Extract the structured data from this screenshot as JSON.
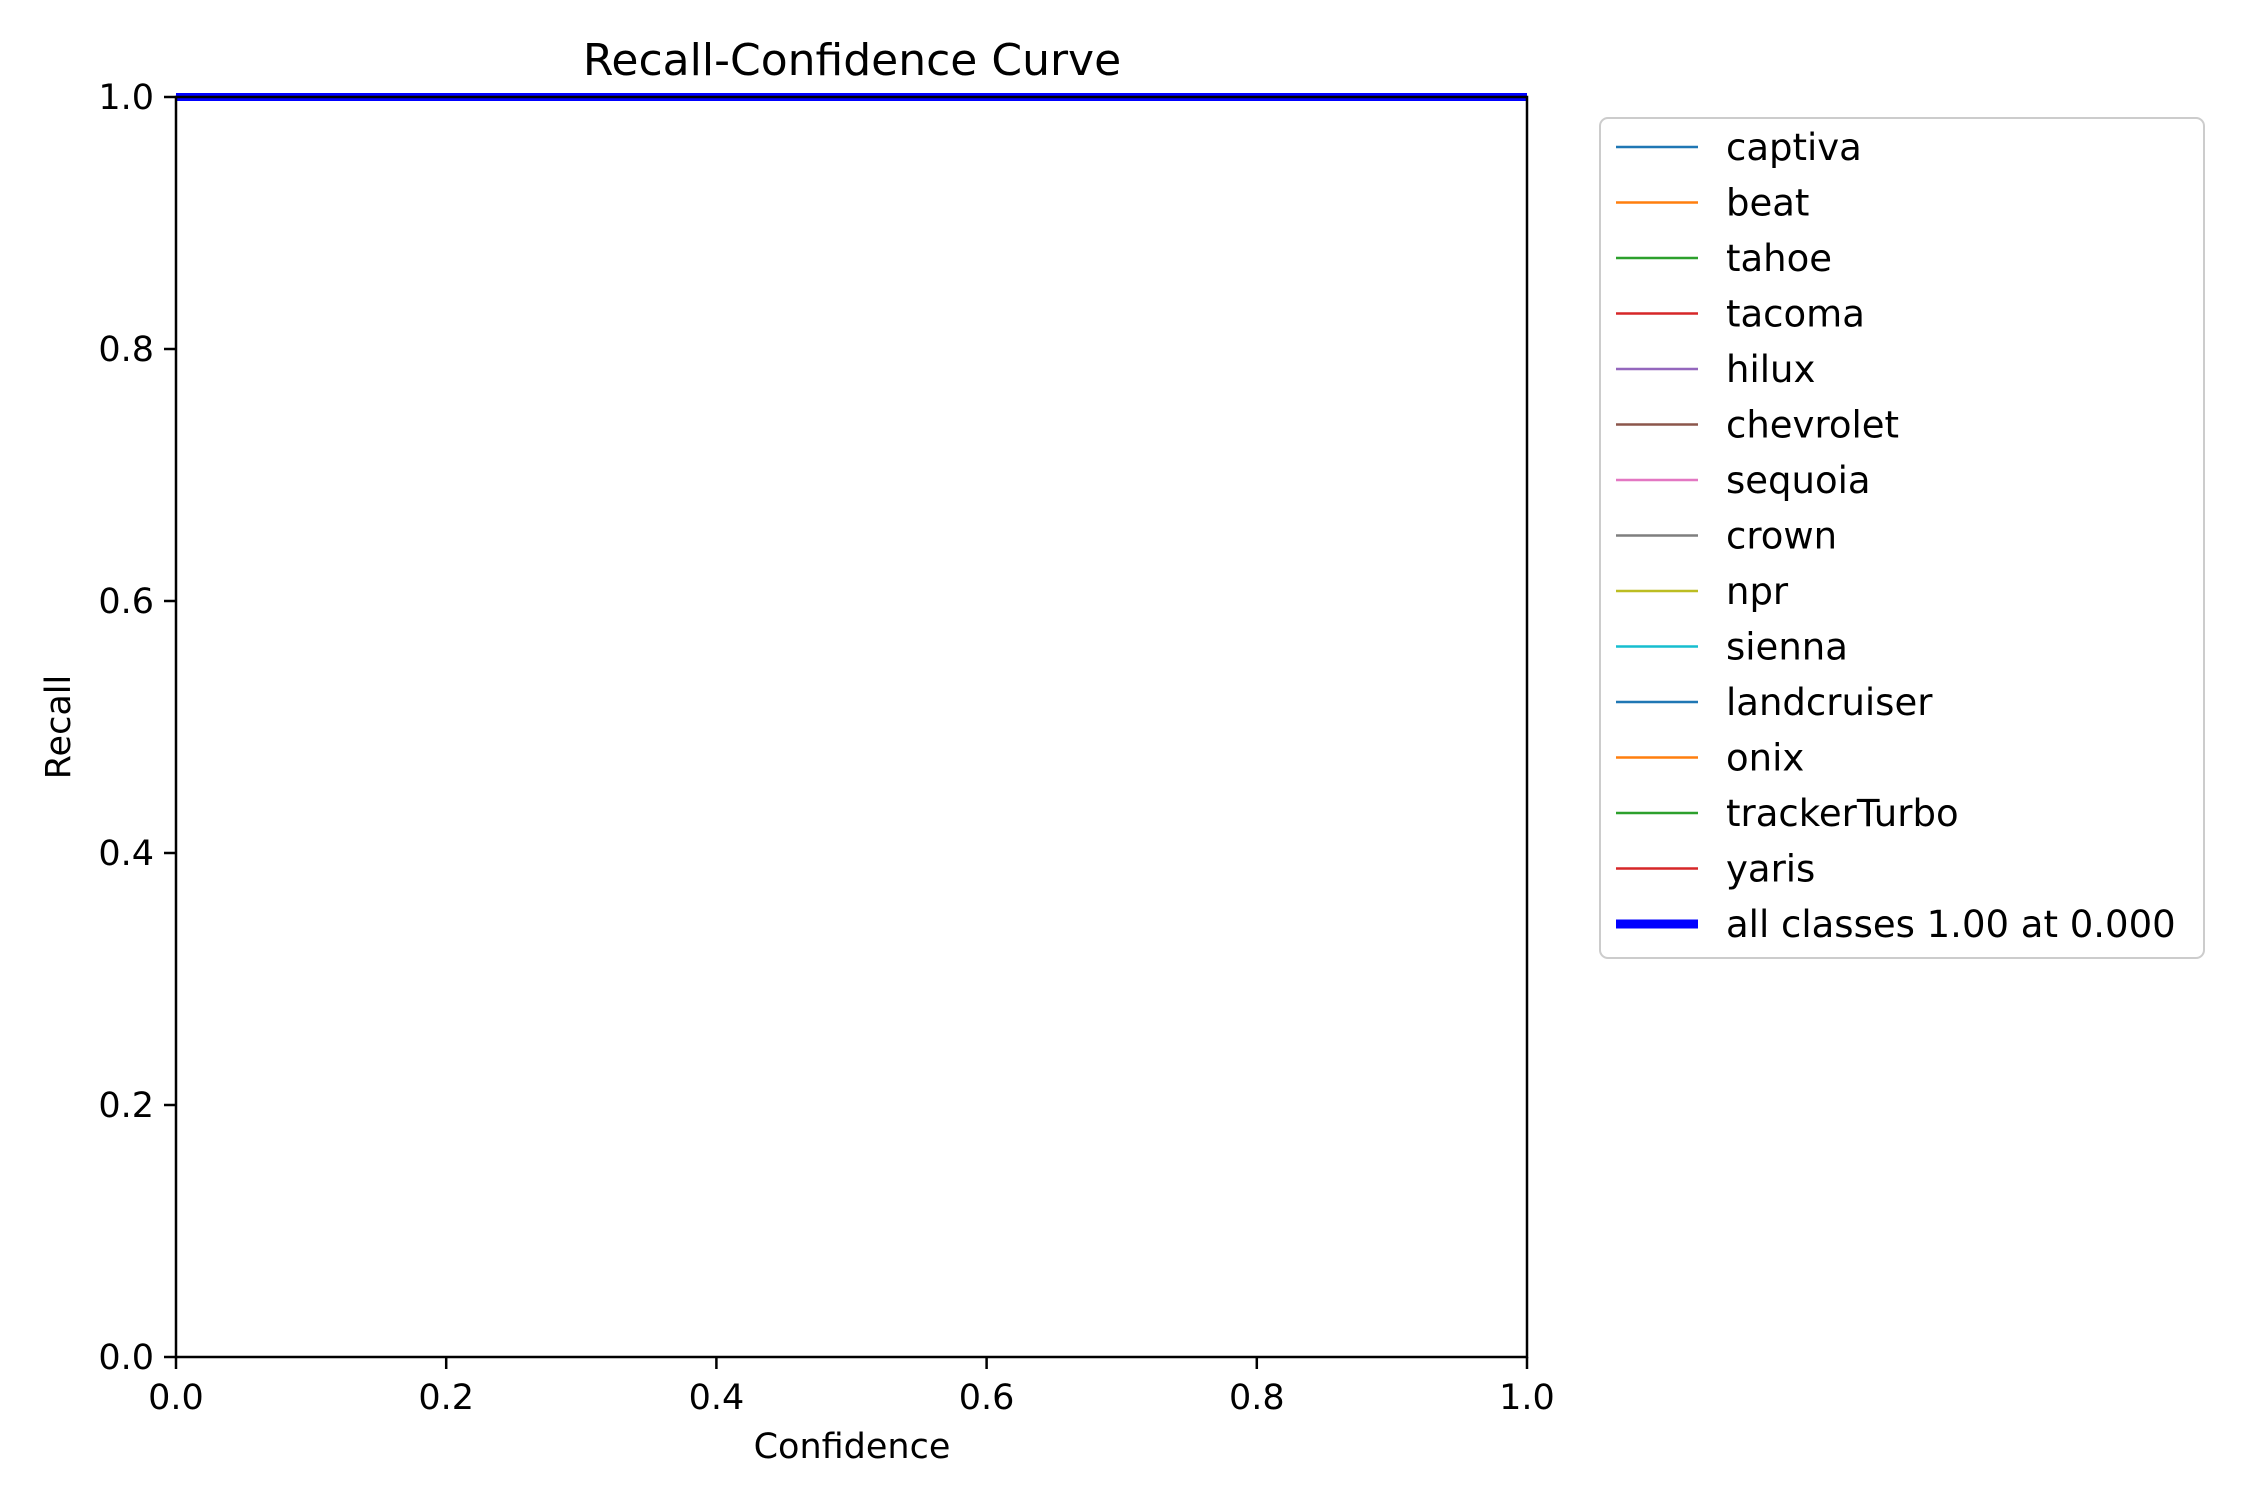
{
  "chart_data": {
    "type": "line",
    "title": "Recall-Confidence Curve",
    "xlabel": "Confidence",
    "ylabel": "Recall",
    "xlim": [
      0,
      1
    ],
    "ylim": [
      0,
      1
    ],
    "xticks": [
      "0.0",
      "0.2",
      "0.4",
      "0.6",
      "0.8",
      "1.0"
    ],
    "yticks": [
      "0.0",
      "0.2",
      "0.4",
      "0.6",
      "0.8",
      "1.0"
    ],
    "grid": false,
    "legend_position": "outside-right-top",
    "series": [
      {
        "name": "captiva",
        "color": "#1f77b4",
        "x": [
          0,
          1
        ],
        "y": [
          1,
          1
        ]
      },
      {
        "name": "beat",
        "color": "#ff7f0e",
        "x": [
          0,
          1
        ],
        "y": [
          1,
          1
        ]
      },
      {
        "name": "tahoe",
        "color": "#2ca02c",
        "x": [
          0,
          1
        ],
        "y": [
          1,
          1
        ]
      },
      {
        "name": "tacoma",
        "color": "#d62728",
        "x": [
          0,
          1
        ],
        "y": [
          1,
          1
        ]
      },
      {
        "name": "hilux",
        "color": "#9467bd",
        "x": [
          0,
          1
        ],
        "y": [
          1,
          1
        ]
      },
      {
        "name": "chevrolet",
        "color": "#8c564b",
        "x": [
          0,
          1
        ],
        "y": [
          1,
          1
        ]
      },
      {
        "name": "sequoia",
        "color": "#e377c2",
        "x": [
          0,
          1
        ],
        "y": [
          1,
          1
        ]
      },
      {
        "name": "crown",
        "color": "#7f7f7f",
        "x": [
          0,
          1
        ],
        "y": [
          1,
          1
        ]
      },
      {
        "name": "npr",
        "color": "#bcbd22",
        "x": [
          0,
          1
        ],
        "y": [
          1,
          1
        ]
      },
      {
        "name": "sienna",
        "color": "#17becf",
        "x": [
          0,
          1
        ],
        "y": [
          1,
          1
        ]
      },
      {
        "name": "landcruiser",
        "color": "#1f77b4",
        "x": [
          0,
          1
        ],
        "y": [
          1,
          1
        ]
      },
      {
        "name": "onix",
        "color": "#ff7f0e",
        "x": [
          0,
          1
        ],
        "y": [
          1,
          1
        ]
      },
      {
        "name": "trackerTurbo",
        "color": "#2ca02c",
        "x": [
          0,
          1
        ],
        "y": [
          1,
          1
        ]
      },
      {
        "name": "yaris",
        "color": "#d62728",
        "x": [
          0,
          1
        ],
        "y": [
          1,
          1
        ]
      },
      {
        "name": "all classes 1.00 at 0.000",
        "color": "#0000ff",
        "emphasis": true,
        "x": [
          0,
          1
        ],
        "y": [
          1,
          1
        ]
      }
    ]
  }
}
